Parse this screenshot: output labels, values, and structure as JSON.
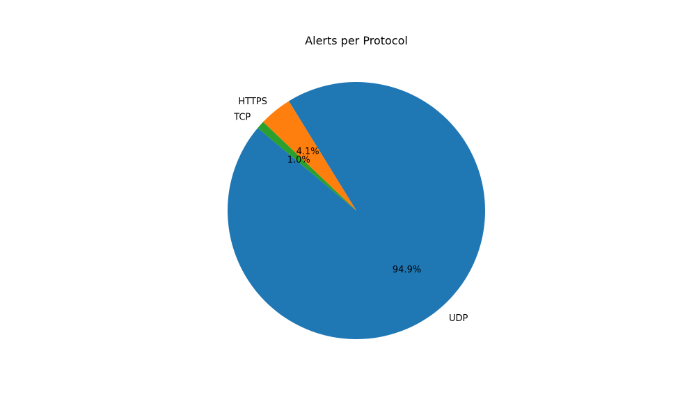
{
  "chart_data": {
    "type": "pie",
    "title": "Alerts per Protocol",
    "slices": [
      {
        "label": "UDP",
        "value": 94.9,
        "pct_label": "94.9%",
        "color": "#1f77b4"
      },
      {
        "label": "HTTPS",
        "value": 4.1,
        "pct_label": "4.1%",
        "color": "#ff7f0e"
      },
      {
        "label": "TCP",
        "value": 1.0,
        "pct_label": "1.0%",
        "color": "#2ca02c"
      }
    ]
  }
}
